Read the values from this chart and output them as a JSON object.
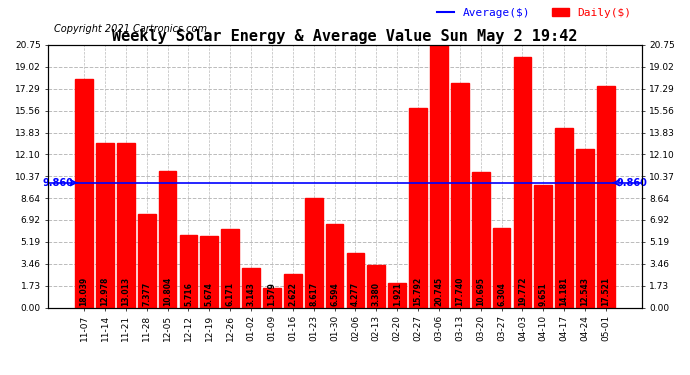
{
  "title": "Weekly Solar Energy & Average Value Sun May 2 19:42",
  "copyright": "Copyright 2021 Cartronics.com",
  "legend_average": "Average($)",
  "legend_daily": "Daily($)",
  "categories": [
    "11-07",
    "11-14",
    "11-21",
    "11-28",
    "12-05",
    "12-12",
    "12-19",
    "12-26",
    "01-02",
    "01-09",
    "01-16",
    "01-23",
    "01-30",
    "02-06",
    "02-13",
    "02-20",
    "02-27",
    "03-06",
    "03-13",
    "03-20",
    "03-27",
    "04-03",
    "04-10",
    "04-17",
    "04-24",
    "05-01"
  ],
  "values": [
    18.039,
    12.978,
    13.013,
    7.377,
    10.804,
    5.716,
    5.674,
    6.171,
    3.143,
    1.579,
    2.622,
    8.617,
    6.594,
    4.277,
    3.38,
    1.921,
    15.792,
    20.745,
    17.74,
    10.695,
    6.304,
    19.772,
    9.651,
    14.181,
    12.543,
    17.521
  ],
  "average_value": 9.86,
  "average_label": "9.860",
  "bar_color": "#ff0000",
  "average_line_color": "#0000ff",
  "background_color": "#ffffff",
  "plot_bg_color": "#ffffff",
  "grid_color": "#bbbbbb",
  "ylim": [
    0,
    20.75
  ],
  "yticks": [
    0.0,
    1.73,
    3.46,
    5.19,
    6.92,
    8.64,
    10.37,
    12.1,
    13.83,
    15.56,
    17.29,
    19.02,
    20.75
  ],
  "title_fontsize": 11,
  "copyright_fontsize": 7,
  "bar_label_fontsize": 5.5,
  "axis_label_fontsize": 6.5,
  "legend_fontsize": 8
}
